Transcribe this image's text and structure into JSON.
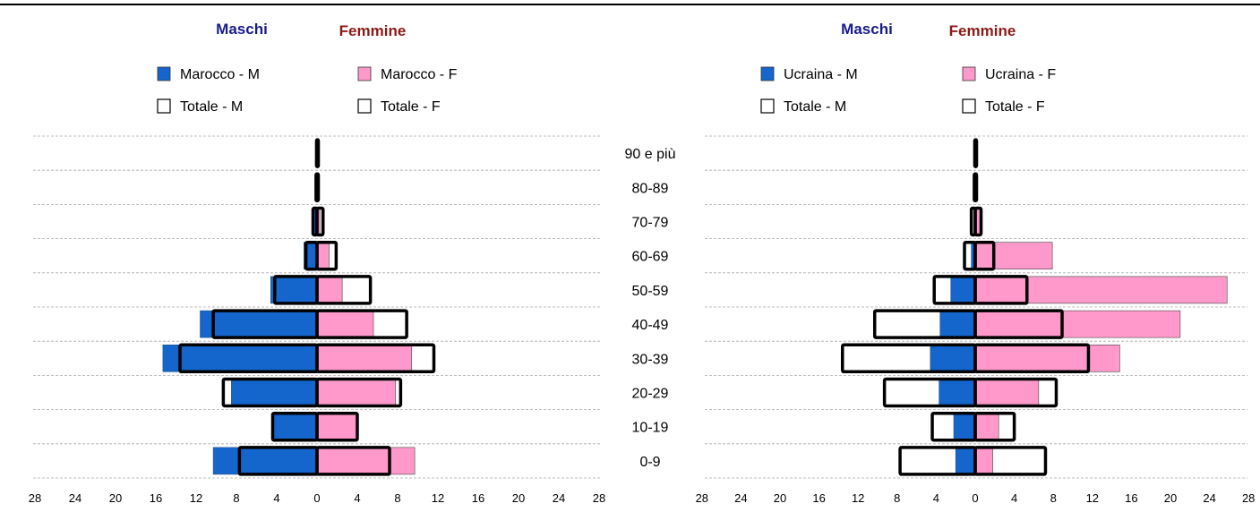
{
  "chart_data": [
    {
      "type": "bar",
      "orientation": "horizontal",
      "subtype": "population-pyramid",
      "header_male": "Maschi",
      "header_female": "Femmine",
      "categories": [
        "0-9",
        "10-19",
        "20-29",
        "30-39",
        "40-49",
        "50-59",
        "60-69",
        "70-79",
        "80-89",
        "90 e più"
      ],
      "xlim": [
        -28,
        28
      ],
      "xticks": [
        "28",
        "24",
        "20",
        "16",
        "12",
        "8",
        "4",
        "0",
        "4",
        "8",
        "12",
        "16",
        "20",
        "24",
        "28"
      ],
      "grid": "horizontal dashed",
      "legend": {
        "placement": "top",
        "items": [
          {
            "key": "country_m",
            "label": "Marocco - M",
            "color": "#1466cc"
          },
          {
            "key": "country_f",
            "label": "Marocco - F",
            "color": "#ff99cc"
          },
          {
            "key": "total_m",
            "label": "Totale - M",
            "color": "#ffffff"
          },
          {
            "key": "total_f",
            "label": "Totale - F",
            "color": "#ffffff"
          }
        ]
      },
      "series": [
        {
          "key": "country_m",
          "side": "left",
          "style": "filled",
          "values": [
            10.3,
            4.3,
            8.5,
            15.3,
            11.6,
            4.6,
            1.3,
            0.3,
            0.1,
            0.05
          ]
        },
        {
          "key": "country_f",
          "side": "right",
          "style": "filled",
          "values": [
            9.7,
            3.9,
            7.8,
            9.4,
            5.6,
            2.5,
            1.2,
            0.3,
            0.1,
            0.05
          ]
        },
        {
          "key": "total_m",
          "side": "left",
          "style": "outline",
          "values": [
            7.7,
            4.4,
            9.3,
            13.6,
            10.3,
            4.2,
            1.1,
            0.4,
            0.1,
            0.05
          ]
        },
        {
          "key": "total_f",
          "side": "right",
          "style": "outline",
          "values": [
            7.2,
            4.0,
            8.3,
            11.6,
            8.9,
            5.3,
            1.9,
            0.6,
            0.1,
            0.05
          ]
        }
      ]
    },
    {
      "type": "bar",
      "orientation": "horizontal",
      "subtype": "population-pyramid",
      "header_male": "Maschi",
      "header_female": "Femmine",
      "categories": [
        "0-9",
        "10-19",
        "20-29",
        "30-39",
        "40-49",
        "50-59",
        "60-69",
        "70-79",
        "80-89",
        "90 e più"
      ],
      "xlim": [
        -28,
        28
      ],
      "xticks": [
        "28",
        "24",
        "20",
        "16",
        "12",
        "8",
        "4",
        "0",
        "4",
        "8",
        "12",
        "16",
        "20",
        "24",
        "28"
      ],
      "grid": "horizontal dashed",
      "legend": {
        "placement": "top",
        "items": [
          {
            "key": "country_m",
            "label": "Ucraina - M",
            "color": "#1466cc"
          },
          {
            "key": "country_f",
            "label": "Ucraina - F",
            "color": "#ff99cc"
          },
          {
            "key": "total_m",
            "label": "Totale - M",
            "color": "#ffffff"
          },
          {
            "key": "total_f",
            "label": "Totale - F",
            "color": "#ffffff"
          }
        ]
      },
      "series": [
        {
          "key": "country_m",
          "side": "left",
          "style": "filled",
          "values": [
            2.0,
            2.2,
            3.7,
            4.6,
            3.6,
            2.5,
            0.4,
            0.1,
            0.05,
            0.05
          ]
        },
        {
          "key": "country_f",
          "side": "right",
          "style": "filled",
          "values": [
            1.8,
            2.4,
            6.5,
            14.8,
            21.0,
            25.8,
            7.9,
            0.6,
            0.1,
            0.05
          ]
        },
        {
          "key": "total_m",
          "side": "left",
          "style": "outline",
          "values": [
            7.7,
            4.4,
            9.3,
            13.6,
            10.3,
            4.2,
            1.1,
            0.4,
            0.1,
            0.05
          ]
        },
        {
          "key": "total_f",
          "side": "right",
          "style": "outline",
          "values": [
            7.2,
            4.0,
            8.3,
            11.6,
            8.9,
            5.3,
            1.9,
            0.6,
            0.1,
            0.05
          ]
        }
      ]
    }
  ],
  "colors": {
    "male": "#1466cc",
    "female": "#ff99cc",
    "outline": "#000000",
    "grid": "#aaaaaa"
  }
}
